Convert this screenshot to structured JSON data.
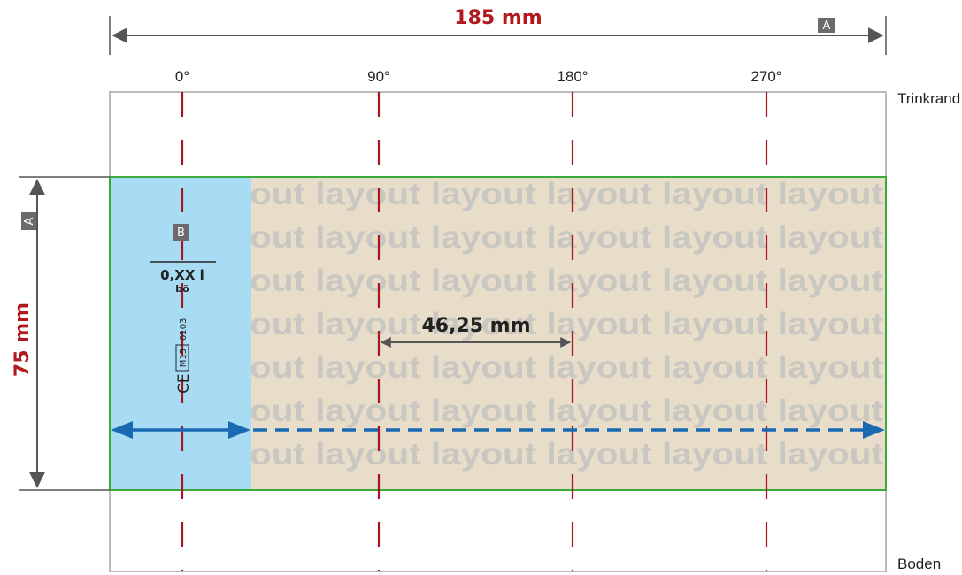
{
  "dimensions": {
    "width_label": "185 mm",
    "height_label": "75 mm",
    "inner_spacing_label": "46,25 mm"
  },
  "angles": [
    "0°",
    "90°",
    "180°",
    "270°"
  ],
  "edge_labels": {
    "top": "Trinkrand",
    "bottom": "Boden"
  },
  "badges": {
    "a_horizontal": "A",
    "a_vertical": "A",
    "b": "B"
  },
  "marking": {
    "volume": "0,XX l",
    "material": "bö",
    "ce": "CE",
    "code": "M15",
    "number": "0103"
  },
  "watermark": {
    "word": "layout",
    "line_text": "out layout layout layout layout layout"
  },
  "colors": {
    "dimension_red": "#b0191e",
    "design_area_border": "#3aab3a",
    "label_zone": "#a8dcf4",
    "print_area": "#e8ddc8",
    "arrow_blue": "#1a6ab3",
    "angle_marker": "#a8151c"
  }
}
